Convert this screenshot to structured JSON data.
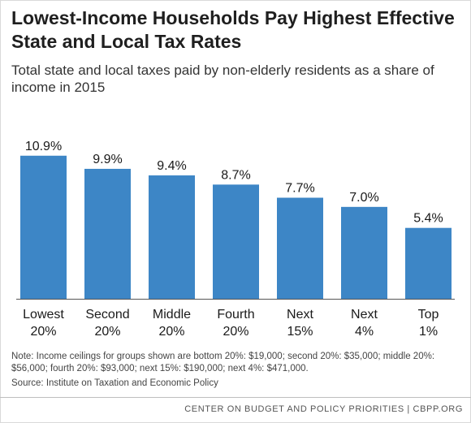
{
  "title": "Lowest-Income Households Pay Highest Effective State and Local Tax Rates",
  "subtitle": "Total state and local taxes paid by non-elderly residents as a share of income in 2015",
  "note": "Note:  Income ceilings for groups shown are bottom 20%:  $19,000; second 20%: $35,000; middle 20%: $56,000; fourth 20%: $93,000; next 15%: $190,000; next 4%: $471,000.",
  "source": "Source: Institute on Taxation and Economic Policy",
  "footer": "CENTER ON BUDGET AND POLICY PRIORITIES | CBPP.ORG",
  "colors": {
    "bar": "#3d86c6"
  },
  "chart_data": {
    "type": "bar",
    "categories": [
      [
        "Lowest",
        "20%"
      ],
      [
        "Second",
        "20%"
      ],
      [
        "Middle",
        "20%"
      ],
      [
        "Fourth",
        "20%"
      ],
      [
        "Next",
        "15%"
      ],
      [
        "Next",
        "4%"
      ],
      [
        "Top",
        "1%"
      ]
    ],
    "values": [
      10.9,
      9.9,
      9.4,
      8.7,
      7.7,
      7.0,
      5.4
    ],
    "value_labels": [
      "10.9%",
      "9.9%",
      "9.4%",
      "8.7%",
      "7.7%",
      "7.0%",
      "5.4%"
    ],
    "ylim": [
      0,
      12
    ],
    "grid": false,
    "legend": "none"
  }
}
